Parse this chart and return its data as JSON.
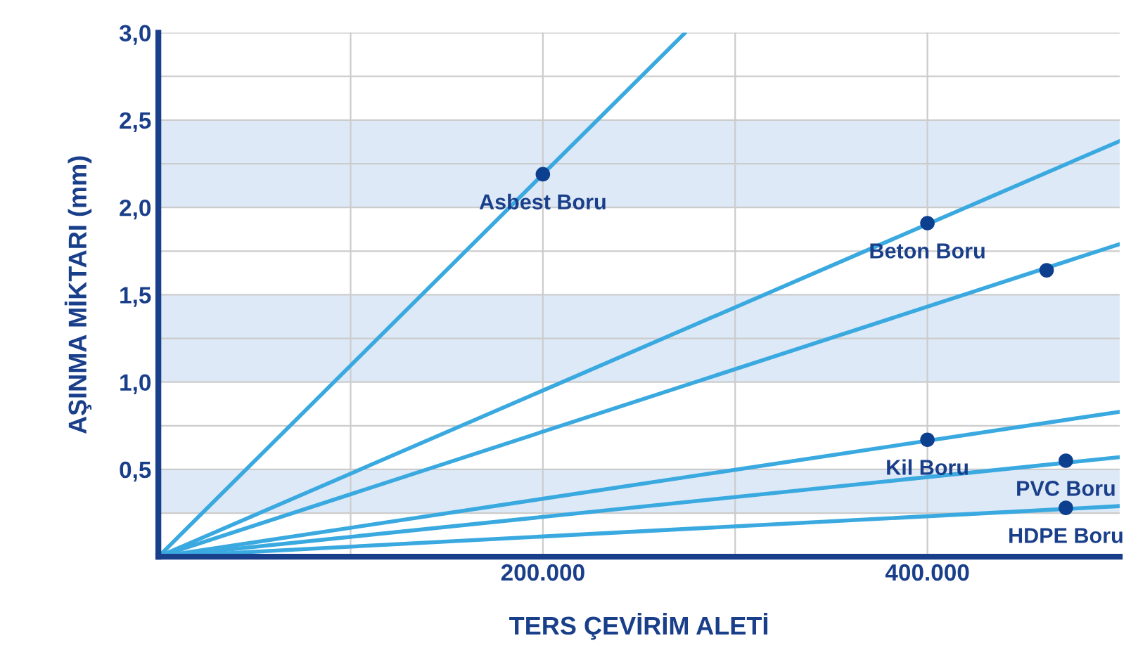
{
  "chart_data": {
    "type": "line",
    "xlabel": "TERS ÇEVİRİM ALETİ",
    "ylabel": "AŞINMA MİKTARI (mm)",
    "xlim": [
      0,
      500000
    ],
    "ylim": [
      0,
      3.0
    ],
    "xticks": [
      {
        "value": 100000,
        "label": null
      },
      {
        "value": 200000,
        "label": "200.000"
      },
      {
        "value": 300000,
        "label": null
      },
      {
        "value": 400000,
        "label": "400.000"
      }
    ],
    "yticks": [
      {
        "value": 0.25,
        "label": null
      },
      {
        "value": 0.5,
        "label": "0,5"
      },
      {
        "value": 0.75,
        "label": null
      },
      {
        "value": 1.0,
        "label": "1,0"
      },
      {
        "value": 1.25,
        "label": null
      },
      {
        "value": 1.5,
        "label": "1,5"
      },
      {
        "value": 1.75,
        "label": null
      },
      {
        "value": 2.0,
        "label": "2,0"
      },
      {
        "value": 2.25,
        "label": null
      },
      {
        "value": 2.5,
        "label": "2,5"
      },
      {
        "value": 2.75,
        "label": null
      },
      {
        "value": 3.0,
        "label": "3,0"
      }
    ],
    "grid": true,
    "legend": false,
    "bands": [
      {
        "axis": "y",
        "from": 2.0,
        "to": 2.5,
        "color": "#dde9f7"
      },
      {
        "axis": "y",
        "from": 1.0,
        "to": 1.5,
        "color": "#dde9f7"
      },
      {
        "axis": "y",
        "from": 0.25,
        "to": 0.5,
        "color": "#dde9f7"
      }
    ],
    "series": [
      {
        "color": "#3aa9e0",
        "x": [
          0,
          274000
        ],
        "values": [
          0,
          3.0
        ]
      },
      {
        "color": "#3aa9e0",
        "x": [
          0,
          500000
        ],
        "values": [
          0,
          2.38
        ]
      },
      {
        "color": "#3aa9e0",
        "x": [
          0,
          500000
        ],
        "values": [
          0,
          1.79
        ]
      },
      {
        "color": "#3aa9e0",
        "x": [
          0,
          500000
        ],
        "values": [
          0,
          0.83
        ]
      },
      {
        "color": "#3aa9e0",
        "x": [
          0,
          500000
        ],
        "values": [
          0,
          0.57
        ]
      },
      {
        "color": "#3aa9e0",
        "x": [
          0,
          500000
        ],
        "values": [
          0,
          0.29
        ]
      },
      {
        "type": "scatter",
        "color": "#0d3f8f",
        "marker": "circle",
        "x": [
          200000,
          400000,
          462000,
          400000,
          472000,
          472000
        ],
        "values": [
          2.19,
          1.91,
          1.64,
          0.67,
          0.55,
          0.28
        ]
      }
    ],
    "annotations": [
      {
        "text": "Asbest Boru",
        "x": 200000,
        "y": 2.19
      },
      {
        "text": "Beton Boru",
        "x": 400000,
        "y": 1.91
      },
      {
        "text": "Kil Boru",
        "x": 400000,
        "y": 0.67
      },
      {
        "text": "PVC Boru",
        "x": 472000,
        "y": 0.55
      },
      {
        "text": "HDPE Boru",
        "x": 472000,
        "y": 0.28
      }
    ]
  }
}
